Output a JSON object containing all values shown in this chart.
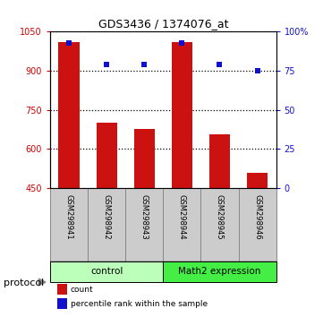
{
  "title": "GDS3436 / 1374076_at",
  "samples": [
    "GSM298941",
    "GSM298942",
    "GSM298943",
    "GSM298944",
    "GSM298945",
    "GSM298946"
  ],
  "counts": [
    1010,
    700,
    678,
    1010,
    655,
    510
  ],
  "percentiles": [
    93,
    79,
    79,
    93,
    79,
    75
  ],
  "ylim_left": [
    450,
    1050
  ],
  "ylim_right": [
    0,
    100
  ],
  "yticks_left": [
    450,
    600,
    750,
    900,
    1050
  ],
  "yticks_right": [
    0,
    25,
    50,
    75,
    100
  ],
  "ytick_labels_right": [
    "0",
    "25",
    "50",
    "75",
    "100%"
  ],
  "bar_color": "#cc1111",
  "dot_color": "#1111cc",
  "groups": [
    {
      "label": "control",
      "start": 0,
      "end": 3,
      "color": "#bbffbb"
    },
    {
      "label": "Math2 expression",
      "start": 3,
      "end": 6,
      "color": "#44ee44"
    }
  ],
  "legend_items": [
    {
      "label": "count",
      "color": "#cc1111"
    },
    {
      "label": "percentile rank within the sample",
      "color": "#1111cc"
    }
  ],
  "background_color": "#ffffff",
  "bar_width": 0.55,
  "sample_box_color": "#cccccc",
  "protocol_label": "protocol"
}
